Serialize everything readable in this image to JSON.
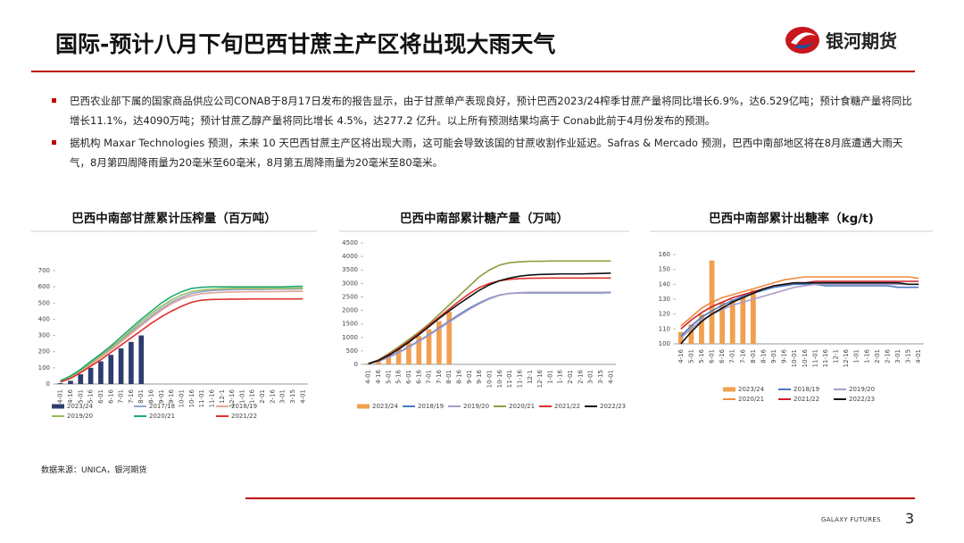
{
  "header": {
    "title": "国际-预计八月下旬巴西甘蔗主产区将出现大雨天气",
    "logo": "银河期货"
  },
  "bullets": [
    "巴西农业部下属的国家商品供应公司CONAB于8月17日发布的报告显示，由于甘蔗单产表现良好，预计巴西2023/24榨季甘蔗产量将同比增长6.9%，达6.529亿吨；预计食糖产量将同比增长11.1%，达4090万吨；预计甘蔗乙醇产量将同比增长 4.5%，达277.2 亿升。以上所有预测结果均高于 Conab此前于4月份发布的预测。",
    "据机构 Maxar Technologies 预测，未来 10 天巴西甘蔗主产区将出现大雨，这可能会导致该国的甘蔗收割作业延迟。Safras & Mercado 预测，巴西中南部地区将在8月底遭遇大雨天气，8月第四周降雨量为20毫米至60毫米，8月第五周降雨量为20毫米至80毫米。"
  ],
  "chart_data": [
    {
      "type": "bar-line",
      "title": "巴西中南部甘蔗累计压榨量（百万吨）",
      "categories": [
        "4-01",
        "4-16",
        "5-01",
        "5-16",
        "6-01",
        "6-16",
        "7-01",
        "7-16",
        "8-01",
        "8-16",
        "9-01",
        "9-16",
        "10-01",
        "10-16",
        "11-01",
        "11-16",
        "12-1",
        "12-16",
        "1-01",
        "1-16",
        "2-01",
        "2-16",
        "3-01",
        "3-15",
        "4-01"
      ],
      "ylim": [
        0,
        700
      ],
      "yticks": [
        0,
        100,
        200,
        300,
        400,
        500,
        600,
        700
      ],
      "series": [
        {
          "name": "2023/24",
          "type": "bar",
          "color": "#2e3c6e",
          "values": [
            5,
            20,
            60,
            100,
            140,
            180,
            220,
            260,
            300,
            null,
            null,
            null,
            null,
            null,
            null,
            null,
            null,
            null,
            null,
            null,
            null,
            null,
            null,
            null,
            null
          ]
        },
        {
          "name": "2017/18",
          "type": "line",
          "color": "#8fa6cf",
          "values": [
            18,
            45,
            85,
            130,
            175,
            220,
            270,
            320,
            370,
            420,
            465,
            505,
            535,
            558,
            570,
            577,
            580,
            582,
            583,
            584,
            584,
            585,
            585,
            586,
            587
          ]
        },
        {
          "name": "2018/19",
          "type": "line",
          "color": "#e6a39a",
          "values": [
            15,
            40,
            80,
            120,
            165,
            210,
            260,
            310,
            360,
            410,
            455,
            495,
            525,
            545,
            557,
            563,
            566,
            568,
            569,
            570,
            570,
            570,
            571,
            572,
            573
          ]
        },
        {
          "name": "2019/20",
          "type": "line",
          "color": "#9bbb59",
          "values": [
            15,
            45,
            85,
            130,
            175,
            225,
            275,
            330,
            385,
            435,
            480,
            520,
            550,
            570,
            580,
            585,
            588,
            590,
            590,
            590,
            590,
            590,
            590,
            591,
            592
          ]
        },
        {
          "name": "2020/21",
          "type": "line",
          "color": "#1fa971",
          "values": [
            20,
            50,
            90,
            140,
            185,
            235,
            290,
            345,
            400,
            450,
            500,
            540,
            570,
            590,
            597,
            600,
            600,
            600,
            600,
            600,
            600,
            600,
            600,
            602,
            603
          ]
        },
        {
          "name": "2021/22",
          "type": "line",
          "color": "#e0302e",
          "values": [
            12,
            35,
            70,
            110,
            150,
            195,
            240,
            285,
            330,
            375,
            415,
            450,
            480,
            505,
            518,
            522,
            523,
            524,
            524,
            525,
            525,
            525,
            525,
            525,
            526
          ]
        }
      ]
    },
    {
      "type": "bar-line",
      "title": "巴西中南部累计糖产量（万吨）",
      "categories": [
        "4-01",
        "4-16",
        "5-01",
        "5-16",
        "6-01",
        "6-16",
        "7-01",
        "7-16",
        "8-01",
        "8-16",
        "9-01",
        "9-16",
        "10-01",
        "10-16",
        "11-01",
        "11-16",
        "12-1",
        "12-16",
        "1-01",
        "1-16",
        "2-01",
        "2-16",
        "3-01",
        "3-15",
        "4-01"
      ],
      "ylim": [
        0,
        4500
      ],
      "yticks": [
        0,
        500,
        1000,
        1500,
        2000,
        2500,
        3000,
        3500,
        4000,
        4500
      ],
      "series": [
        {
          "name": "2023/24",
          "type": "bar",
          "color": "#f0a050",
          "values": [
            30,
            150,
            350,
            580,
            800,
            1050,
            1300,
            1600,
            1950,
            null,
            null,
            null,
            null,
            null,
            null,
            null,
            null,
            null,
            null,
            null,
            null,
            null,
            null,
            null,
            null
          ]
        },
        {
          "name": "2018/19",
          "type": "line",
          "color": "#4a78c0",
          "values": [
            20,
            120,
            280,
            450,
            650,
            870,
            1100,
            1350,
            1600,
            1850,
            2080,
            2280,
            2450,
            2570,
            2630,
            2650,
            2650,
            2650,
            2650,
            2650,
            2650,
            2650,
            2650,
            2650,
            2660
          ]
        },
        {
          "name": "2019/20",
          "type": "line",
          "color": "#a89cc8",
          "values": [
            20,
            110,
            260,
            430,
            630,
            850,
            1080,
            1320,
            1570,
            1810,
            2040,
            2250,
            2430,
            2560,
            2630,
            2660,
            2670,
            2670,
            2670,
            2670,
            2670,
            2670,
            2670,
            2670,
            2680
          ]
        },
        {
          "name": "2020/21",
          "type": "line",
          "color": "#8aa040",
          "values": [
            30,
            170,
            400,
            650,
            920,
            1200,
            1500,
            1850,
            2200,
            2550,
            2900,
            3250,
            3500,
            3680,
            3770,
            3800,
            3820,
            3820,
            3830,
            3830,
            3830,
            3830,
            3830,
            3830,
            3830
          ]
        },
        {
          "name": "2021/22",
          "type": "line",
          "color": "#e0302e",
          "values": [
            25,
            150,
            360,
            600,
            860,
            1150,
            1450,
            1750,
            2050,
            2350,
            2620,
            2850,
            3000,
            3100,
            3150,
            3180,
            3190,
            3195,
            3200,
            3200,
            3200,
            3200,
            3200,
            3200,
            3200
          ]
        },
        {
          "name": "2022/23",
          "type": "line",
          "color": "#111111",
          "values": [
            30,
            140,
            330,
            560,
            820,
            1100,
            1400,
            1700,
            1980,
            2250,
            2500,
            2750,
            2950,
            3100,
            3200,
            3270,
            3310,
            3330,
            3340,
            3350,
            3350,
            3350,
            3360,
            3370,
            3380
          ]
        }
      ]
    },
    {
      "type": "bar-line",
      "title": "巴西中南部累计出糖率（kg/t)",
      "categories": [
        "4-16",
        "5-01",
        "5-16",
        "6-01",
        "6-16",
        "7-01",
        "7-16",
        "8-01",
        "8-16",
        "9-01",
        "9-16",
        "10-01",
        "10-16",
        "11-01",
        "11-16",
        "12-1",
        "12-16",
        "1-01",
        "1-16",
        "2-01",
        "2-16",
        "3-01",
        "3-15",
        "4-01"
      ],
      "ylim": [
        100,
        160
      ],
      "yticks": [
        100,
        110,
        120,
        130,
        140,
        150,
        160
      ],
      "series": [
        {
          "name": "2023/24",
          "type": "bar",
          "color": "#f0a050",
          "values": [
            108,
            113,
            120,
            156,
            128,
            130,
            133,
            136,
            null,
            null,
            null,
            null,
            null,
            null,
            null,
            null,
            null,
            null,
            null,
            null,
            null,
            null,
            null,
            null
          ]
        },
        {
          "name": "2018/19",
          "type": "line",
          "color": "#4a78c0",
          "values": [
            105,
            112,
            118,
            122,
            126,
            129,
            132,
            134,
            136,
            138,
            139,
            140,
            140,
            140,
            139,
            139,
            139,
            139,
            139,
            139,
            139,
            138,
            138,
            138
          ]
        },
        {
          "name": "2019/20",
          "type": "line",
          "color": "#a89cc8",
          "values": [
            104,
            110,
            116,
            120,
            123,
            126,
            128,
            130,
            132,
            134,
            136,
            138,
            139,
            140,
            140,
            140,
            140,
            140,
            140,
            140,
            140,
            140,
            140,
            140
          ]
        },
        {
          "name": "2020/21",
          "type": "line",
          "color": "#f08a3c",
          "values": [
            112,
            118,
            124,
            128,
            131,
            133,
            135,
            137,
            139,
            141,
            143,
            144,
            145,
            145,
            145,
            145,
            145,
            145,
            145,
            145,
            145,
            145,
            145,
            144
          ]
        },
        {
          "name": "2021/22",
          "type": "line",
          "color": "#d0202a",
          "values": [
            110,
            116,
            121,
            125,
            128,
            131,
            133,
            135,
            137,
            139,
            140,
            141,
            141,
            142,
            142,
            142,
            142,
            142,
            142,
            142,
            142,
            142,
            142,
            142
          ]
        },
        {
          "name": "2022/23",
          "type": "line",
          "color": "#111111",
          "values": [
            100,
            108,
            115,
            120,
            124,
            128,
            131,
            134,
            137,
            139,
            140,
            141,
            141,
            141,
            141,
            141,
            141,
            141,
            141,
            141,
            141,
            141,
            140,
            140
          ]
        }
      ]
    }
  ],
  "source": "数据来源：UNICA，银河期货",
  "footer": {
    "brand": "GALAXY FUTURES",
    "page": "3"
  }
}
